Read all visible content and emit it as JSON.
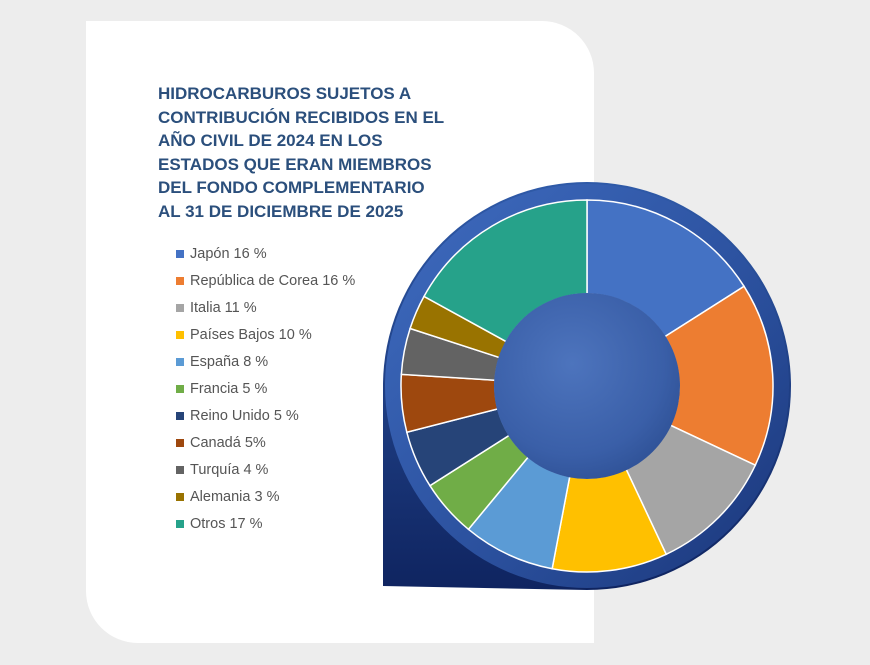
{
  "chart_data": {
    "type": "pie",
    "title": "HIDROCARBUROS SUJETOS A\nCONTRIBUCIÓN RECIBIDOS EN EL\nAÑO CIVIL DE 2024 EN LOS\nESTADOS QUE ERAN MIEMBROS\nDEL FONDO COMPLEMENTARIO\nAL 31 DE DICIEMBRE DE 2025",
    "legend_position": "left",
    "unit": "%",
    "categories": [
      "Japón",
      "República de Corea",
      "Italia",
      "Países Bajos",
      "España",
      "Francia",
      "Reino Unido",
      "Canadá",
      "Turquía",
      "Alemania",
      "Otros"
    ],
    "values": [
      16,
      16,
      11,
      10,
      8,
      5,
      5,
      5,
      4,
      3,
      17
    ],
    "legend_labels": [
      "Japón 16 %",
      "República de Corea 16 %",
      "Italia 11 %",
      "Países Bajos 10 %",
      "España 8 %",
      "Francia 5 %",
      "Reino Unido 5 %",
      "Canadá 5%",
      "Turquía 4 %",
      "Alemania 3 %",
      "Otros 17 %"
    ],
    "colors": [
      "#4472c4",
      "#ed7d31",
      "#a5a5a5",
      "#ffc000",
      "#5b9bd5",
      "#70ad47",
      "#264478",
      "#9e480e",
      "#636363",
      "#997300",
      "#26a28a"
    ]
  }
}
